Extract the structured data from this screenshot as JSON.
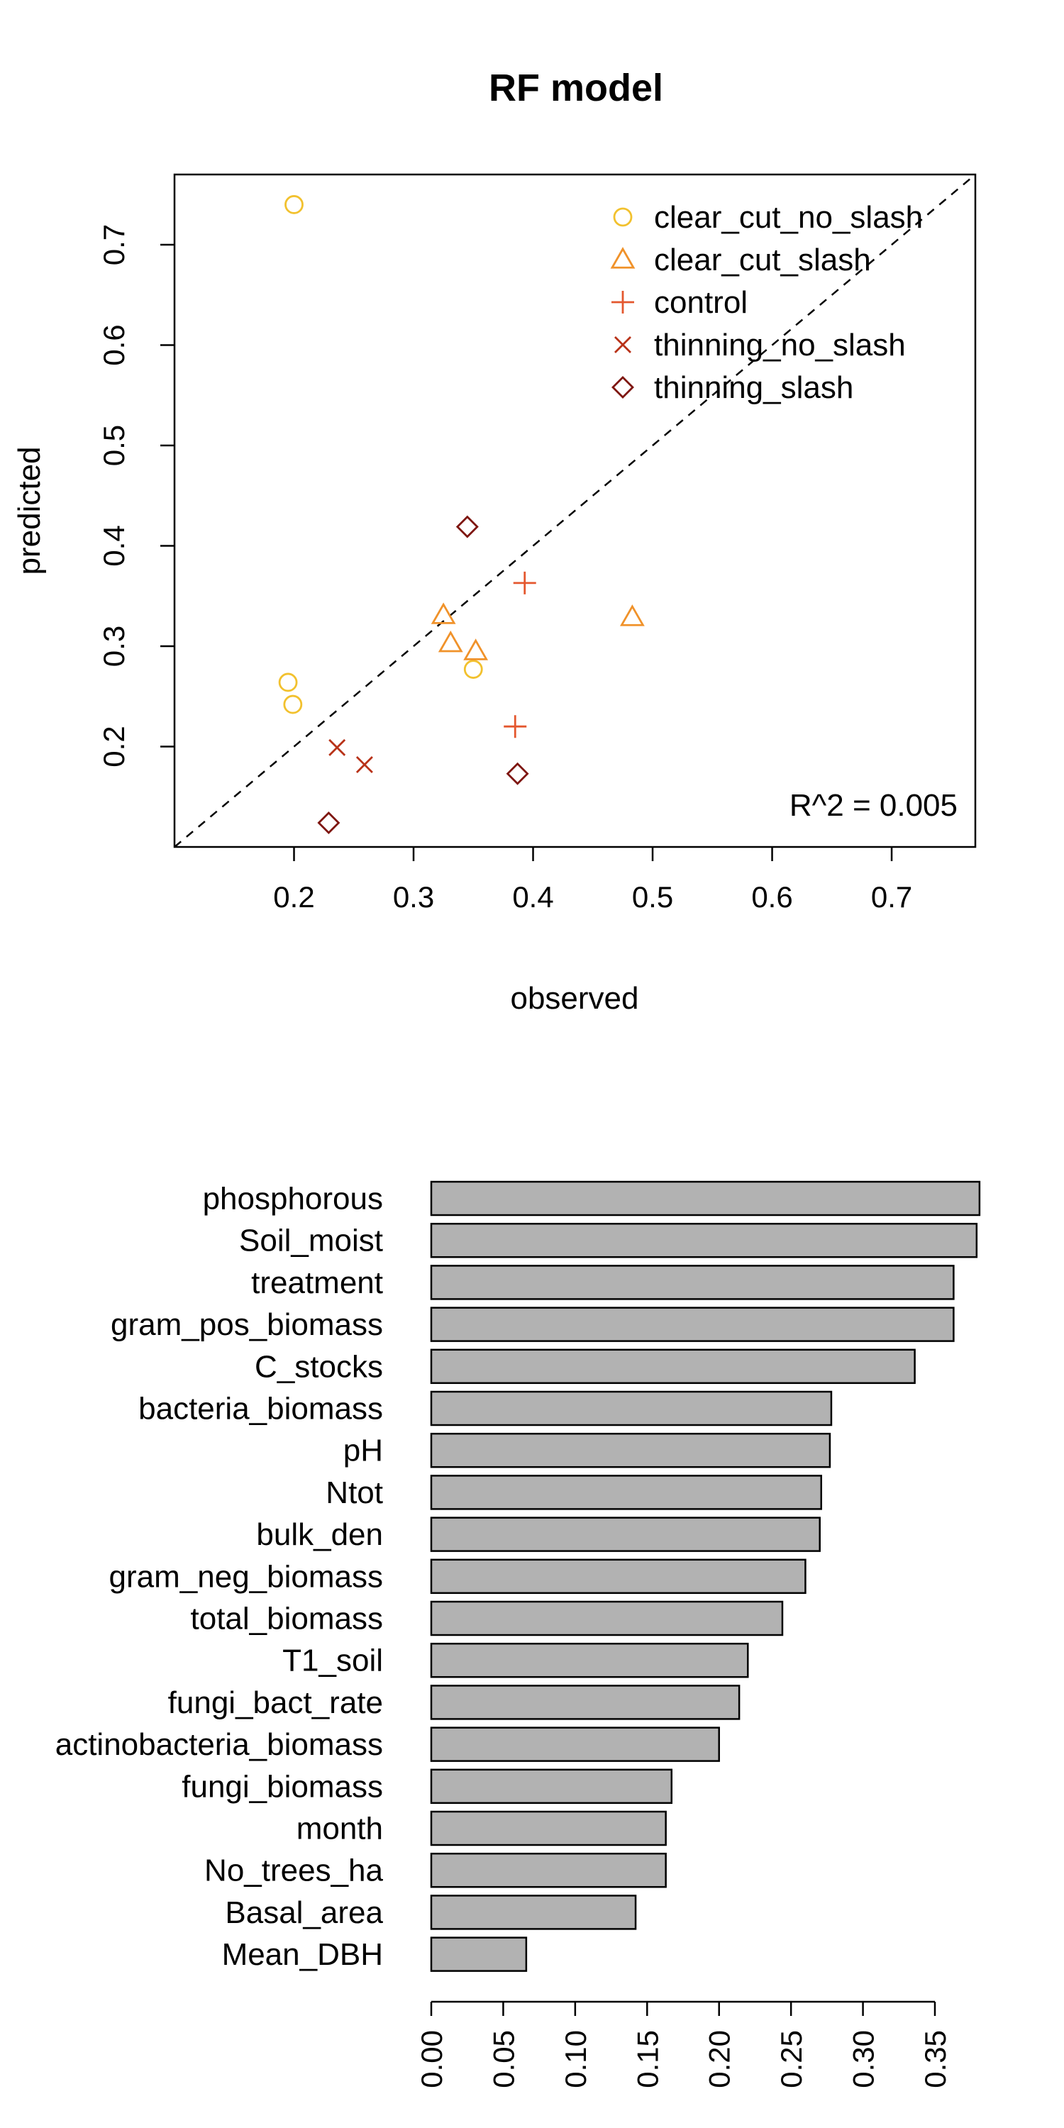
{
  "chart_data": [
    {
      "type": "scatter",
      "title": "RF model",
      "xlabel": "observed",
      "ylabel": "predicted",
      "xlim": [
        0.1,
        0.77
      ],
      "ylim": [
        0.1,
        0.77
      ],
      "xticks": [
        0.2,
        0.3,
        0.4,
        0.5,
        0.6,
        0.7
      ],
      "yticks": [
        0.2,
        0.3,
        0.4,
        0.5,
        0.6,
        0.7
      ],
      "reference_line": "y = x (dashed)",
      "annotation": "R^2 = 0.005",
      "legend_position": "top-right",
      "series": [
        {
          "name": "clear_cut_no_slash",
          "marker": "circle",
          "color": "#f2c12e",
          "points": [
            [
              0.2,
              0.74
            ],
            [
              0.195,
              0.264
            ],
            [
              0.199,
              0.242
            ],
            [
              0.35,
              0.277
            ]
          ]
        },
        {
          "name": "clear_cut_slash",
          "marker": "triangle",
          "color": "#f0922a",
          "points": [
            [
              0.325,
              0.331
            ],
            [
              0.331,
              0.303
            ],
            [
              0.352,
              0.295
            ],
            [
              0.483,
              0.329
            ]
          ]
        },
        {
          "name": "control",
          "marker": "plus",
          "color": "#e4572e",
          "points": [
            [
              0.393,
              0.363
            ],
            [
              0.385,
              0.22
            ]
          ]
        },
        {
          "name": "thinning_no_slash",
          "marker": "cross",
          "color": "#b83218",
          "points": [
            [
              0.236,
              0.199
            ],
            [
              0.259,
              0.182
            ]
          ]
        },
        {
          "name": "thinning_slash",
          "marker": "diamond",
          "color": "#7e1610",
          "points": [
            [
              0.345,
              0.419
            ],
            [
              0.387,
              0.173
            ],
            [
              0.229,
              0.124
            ]
          ]
        }
      ]
    },
    {
      "type": "bar",
      "orientation": "horizontal",
      "categories": [
        "phosphorous",
        "Soil_moist",
        "treatment",
        "gram_pos_biomass",
        "C_stocks",
        "bacteria_biomass",
        "pH",
        "Ntot",
        "bulk_den",
        "gram_neg_biomass",
        "total_biomass",
        "T1_soil",
        "fungi_bact_rate",
        "actinobacteria_biomass",
        "fungi_biomass",
        "month",
        "No_trees_ha",
        "Basal_area",
        "Mean_DBH"
      ],
      "values": [
        0.381,
        0.379,
        0.363,
        0.363,
        0.336,
        0.278,
        0.277,
        0.271,
        0.27,
        0.26,
        0.244,
        0.22,
        0.214,
        0.2,
        0.167,
        0.163,
        0.163,
        0.142,
        0.066
      ],
      "xlim": [
        0,
        0.38
      ],
      "xticks": [
        "0.00",
        "0.05",
        "0.10",
        "0.15",
        "0.20",
        "0.25",
        "0.30",
        "0.35"
      ],
      "bar_color": "#b2b2b2"
    }
  ]
}
